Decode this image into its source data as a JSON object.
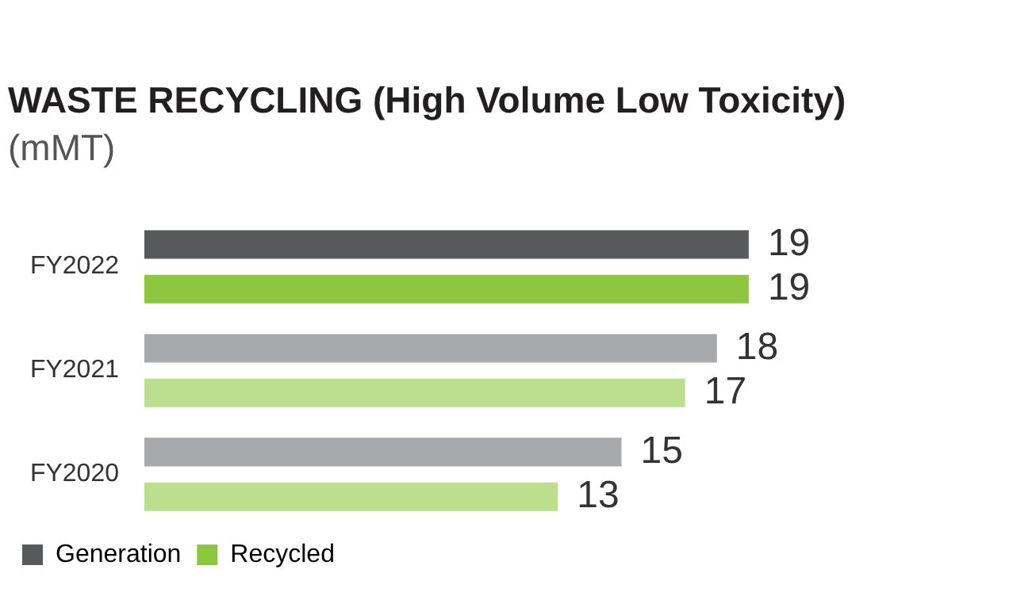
{
  "chart_data": {
    "type": "bar",
    "orientation": "horizontal",
    "title": "WASTE RECYCLING (High Volume Low Toxicity)",
    "subtitle": "(mMT)",
    "categories": [
      "FY2022",
      "FY2021",
      "FY2020"
    ],
    "series": [
      {
        "name": "Generation",
        "color": "#58595b",
        "colors": [
          "#58595b",
          "#a7a9ac",
          "#a7a9ac"
        ],
        "values": [
          19,
          18,
          15
        ]
      },
      {
        "name": "Recycled",
        "color": "#8dc63f",
        "colors": [
          "#8dc63f",
          "#bbdf8f",
          "#bbdf8f"
        ],
        "values": [
          19,
          17,
          13
        ]
      }
    ],
    "data_labels": true,
    "legend": "bottom left"
  }
}
